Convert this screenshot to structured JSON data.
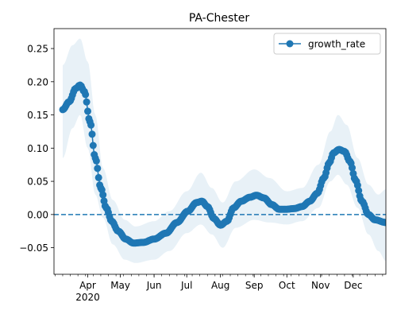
{
  "chart_data": {
    "type": "line",
    "title": "PA-Chester",
    "xlabel": "",
    "ylabel": "",
    "x_start": "2020-03-09",
    "x_end": "2020-12-31",
    "xlim": [
      "2020-03-01",
      "2020-12-31"
    ],
    "ylim": [
      -0.09,
      0.28
    ],
    "yticks": [
      -0.05,
      0.0,
      0.05,
      0.1,
      0.15,
      0.2,
      0.25
    ],
    "ytick_labels": [
      "−0.05",
      "0.00",
      "0.05",
      "0.10",
      "0.15",
      "0.20",
      "0.25"
    ],
    "xticks": [
      {
        "date": "2020-04-01",
        "label": "Apr",
        "sublabel": "2020"
      },
      {
        "date": "2020-05-01",
        "label": "May",
        "sublabel": ""
      },
      {
        "date": "2020-06-01",
        "label": "Jun",
        "sublabel": ""
      },
      {
        "date": "2020-07-01",
        "label": "Jul",
        "sublabel": ""
      },
      {
        "date": "2020-08-01",
        "label": "Aug",
        "sublabel": ""
      },
      {
        "date": "2020-09-01",
        "label": "Sep",
        "sublabel": ""
      },
      {
        "date": "2020-10-01",
        "label": "Oct",
        "sublabel": ""
      },
      {
        "date": "2020-11-01",
        "label": "Nov",
        "sublabel": ""
      },
      {
        "date": "2020-12-01",
        "label": "Dec",
        "sublabel": ""
      }
    ],
    "grid": false,
    "legend": {
      "position": "upper right",
      "entries": [
        "growth_rate"
      ]
    },
    "reference_line": {
      "y": 0.0,
      "style": "dashed",
      "color": "#1f77b4"
    },
    "series": [
      {
        "name": "growth_rate",
        "color": "#1f77b4",
        "marker": "circle",
        "keypoints": [
          {
            "date": "2020-03-09",
            "value": 0.158
          },
          {
            "date": "2020-03-15",
            "value": 0.17
          },
          {
            "date": "2020-03-21",
            "value": 0.19
          },
          {
            "date": "2020-03-25",
            "value": 0.195
          },
          {
            "date": "2020-03-29",
            "value": 0.185
          },
          {
            "date": "2020-04-03",
            "value": 0.14
          },
          {
            "date": "2020-04-08",
            "value": 0.085
          },
          {
            "date": "2020-04-13",
            "value": 0.04
          },
          {
            "date": "2020-04-18",
            "value": 0.01
          },
          {
            "date": "2020-04-23",
            "value": -0.01
          },
          {
            "date": "2020-04-29",
            "value": -0.025
          },
          {
            "date": "2020-05-06",
            "value": -0.037
          },
          {
            "date": "2020-05-13",
            "value": -0.043
          },
          {
            "date": "2020-05-22",
            "value": -0.042
          },
          {
            "date": "2020-06-01",
            "value": -0.037
          },
          {
            "date": "2020-06-12",
            "value": -0.028
          },
          {
            "date": "2020-06-22",
            "value": -0.012
          },
          {
            "date": "2020-07-02",
            "value": 0.005
          },
          {
            "date": "2020-07-10",
            "value": 0.018
          },
          {
            "date": "2020-07-15",
            "value": 0.02
          },
          {
            "date": "2020-07-20",
            "value": 0.012
          },
          {
            "date": "2020-07-26",
            "value": -0.006
          },
          {
            "date": "2020-08-01",
            "value": -0.016
          },
          {
            "date": "2020-08-07",
            "value": -0.01
          },
          {
            "date": "2020-08-13",
            "value": 0.01
          },
          {
            "date": "2020-08-20",
            "value": 0.02
          },
          {
            "date": "2020-08-28",
            "value": 0.026
          },
          {
            "date": "2020-09-03",
            "value": 0.029
          },
          {
            "date": "2020-09-10",
            "value": 0.025
          },
          {
            "date": "2020-09-17",
            "value": 0.015
          },
          {
            "date": "2020-09-24",
            "value": 0.008
          },
          {
            "date": "2020-10-01",
            "value": 0.008
          },
          {
            "date": "2020-10-08",
            "value": 0.009
          },
          {
            "date": "2020-10-15",
            "value": 0.012
          },
          {
            "date": "2020-10-22",
            "value": 0.02
          },
          {
            "date": "2020-10-29",
            "value": 0.032
          },
          {
            "date": "2020-11-04",
            "value": 0.055
          },
          {
            "date": "2020-11-09",
            "value": 0.078
          },
          {
            "date": "2020-11-13",
            "value": 0.093
          },
          {
            "date": "2020-11-18",
            "value": 0.098
          },
          {
            "date": "2020-11-23",
            "value": 0.095
          },
          {
            "date": "2020-11-28",
            "value": 0.08
          },
          {
            "date": "2020-12-03",
            "value": 0.052
          },
          {
            "date": "2020-12-09",
            "value": 0.02
          },
          {
            "date": "2020-12-15",
            "value": 0.0
          },
          {
            "date": "2020-12-21",
            "value": -0.008
          },
          {
            "date": "2020-12-31",
            "value": -0.012
          }
        ],
        "band": [
          {
            "date": "2020-03-09",
            "lower": 0.085,
            "upper": 0.225
          },
          {
            "date": "2020-03-18",
            "lower": 0.13,
            "upper": 0.255
          },
          {
            "date": "2020-03-25",
            "lower": 0.15,
            "upper": 0.265
          },
          {
            "date": "2020-04-01",
            "lower": 0.1,
            "upper": 0.23
          },
          {
            "date": "2020-04-08",
            "lower": 0.03,
            "upper": 0.15
          },
          {
            "date": "2020-04-15",
            "lower": -0.005,
            "upper": 0.07
          },
          {
            "date": "2020-04-24",
            "lower": -0.045,
            "upper": 0.022
          },
          {
            "date": "2020-05-05",
            "lower": -0.068,
            "upper": -0.008
          },
          {
            "date": "2020-05-15",
            "lower": -0.073,
            "upper": -0.018
          },
          {
            "date": "2020-06-01",
            "lower": -0.068,
            "upper": -0.01
          },
          {
            "date": "2020-06-15",
            "lower": -0.055,
            "upper": 0.005
          },
          {
            "date": "2020-07-01",
            "lower": -0.028,
            "upper": 0.035
          },
          {
            "date": "2020-07-14",
            "lower": -0.015,
            "upper": 0.063
          },
          {
            "date": "2020-07-24",
            "lower": -0.03,
            "upper": 0.04
          },
          {
            "date": "2020-08-03",
            "lower": -0.05,
            "upper": 0.018
          },
          {
            "date": "2020-08-15",
            "lower": -0.02,
            "upper": 0.05
          },
          {
            "date": "2020-09-01",
            "lower": -0.008,
            "upper": 0.068
          },
          {
            "date": "2020-09-15",
            "lower": -0.012,
            "upper": 0.055
          },
          {
            "date": "2020-10-01",
            "lower": -0.015,
            "upper": 0.035
          },
          {
            "date": "2020-10-15",
            "lower": -0.01,
            "upper": 0.04
          },
          {
            "date": "2020-10-30",
            "lower": 0.01,
            "upper": 0.075
          },
          {
            "date": "2020-11-10",
            "lower": 0.05,
            "upper": 0.125
          },
          {
            "date": "2020-11-17",
            "lower": 0.06,
            "upper": 0.15
          },
          {
            "date": "2020-11-25",
            "lower": 0.045,
            "upper": 0.135
          },
          {
            "date": "2020-12-05",
            "lower": 0.01,
            "upper": 0.085
          },
          {
            "date": "2020-12-15",
            "lower": -0.03,
            "upper": 0.045
          },
          {
            "date": "2020-12-24",
            "lower": -0.055,
            "upper": 0.03
          },
          {
            "date": "2020-12-31",
            "lower": -0.07,
            "upper": 0.038
          }
        ]
      }
    ]
  }
}
